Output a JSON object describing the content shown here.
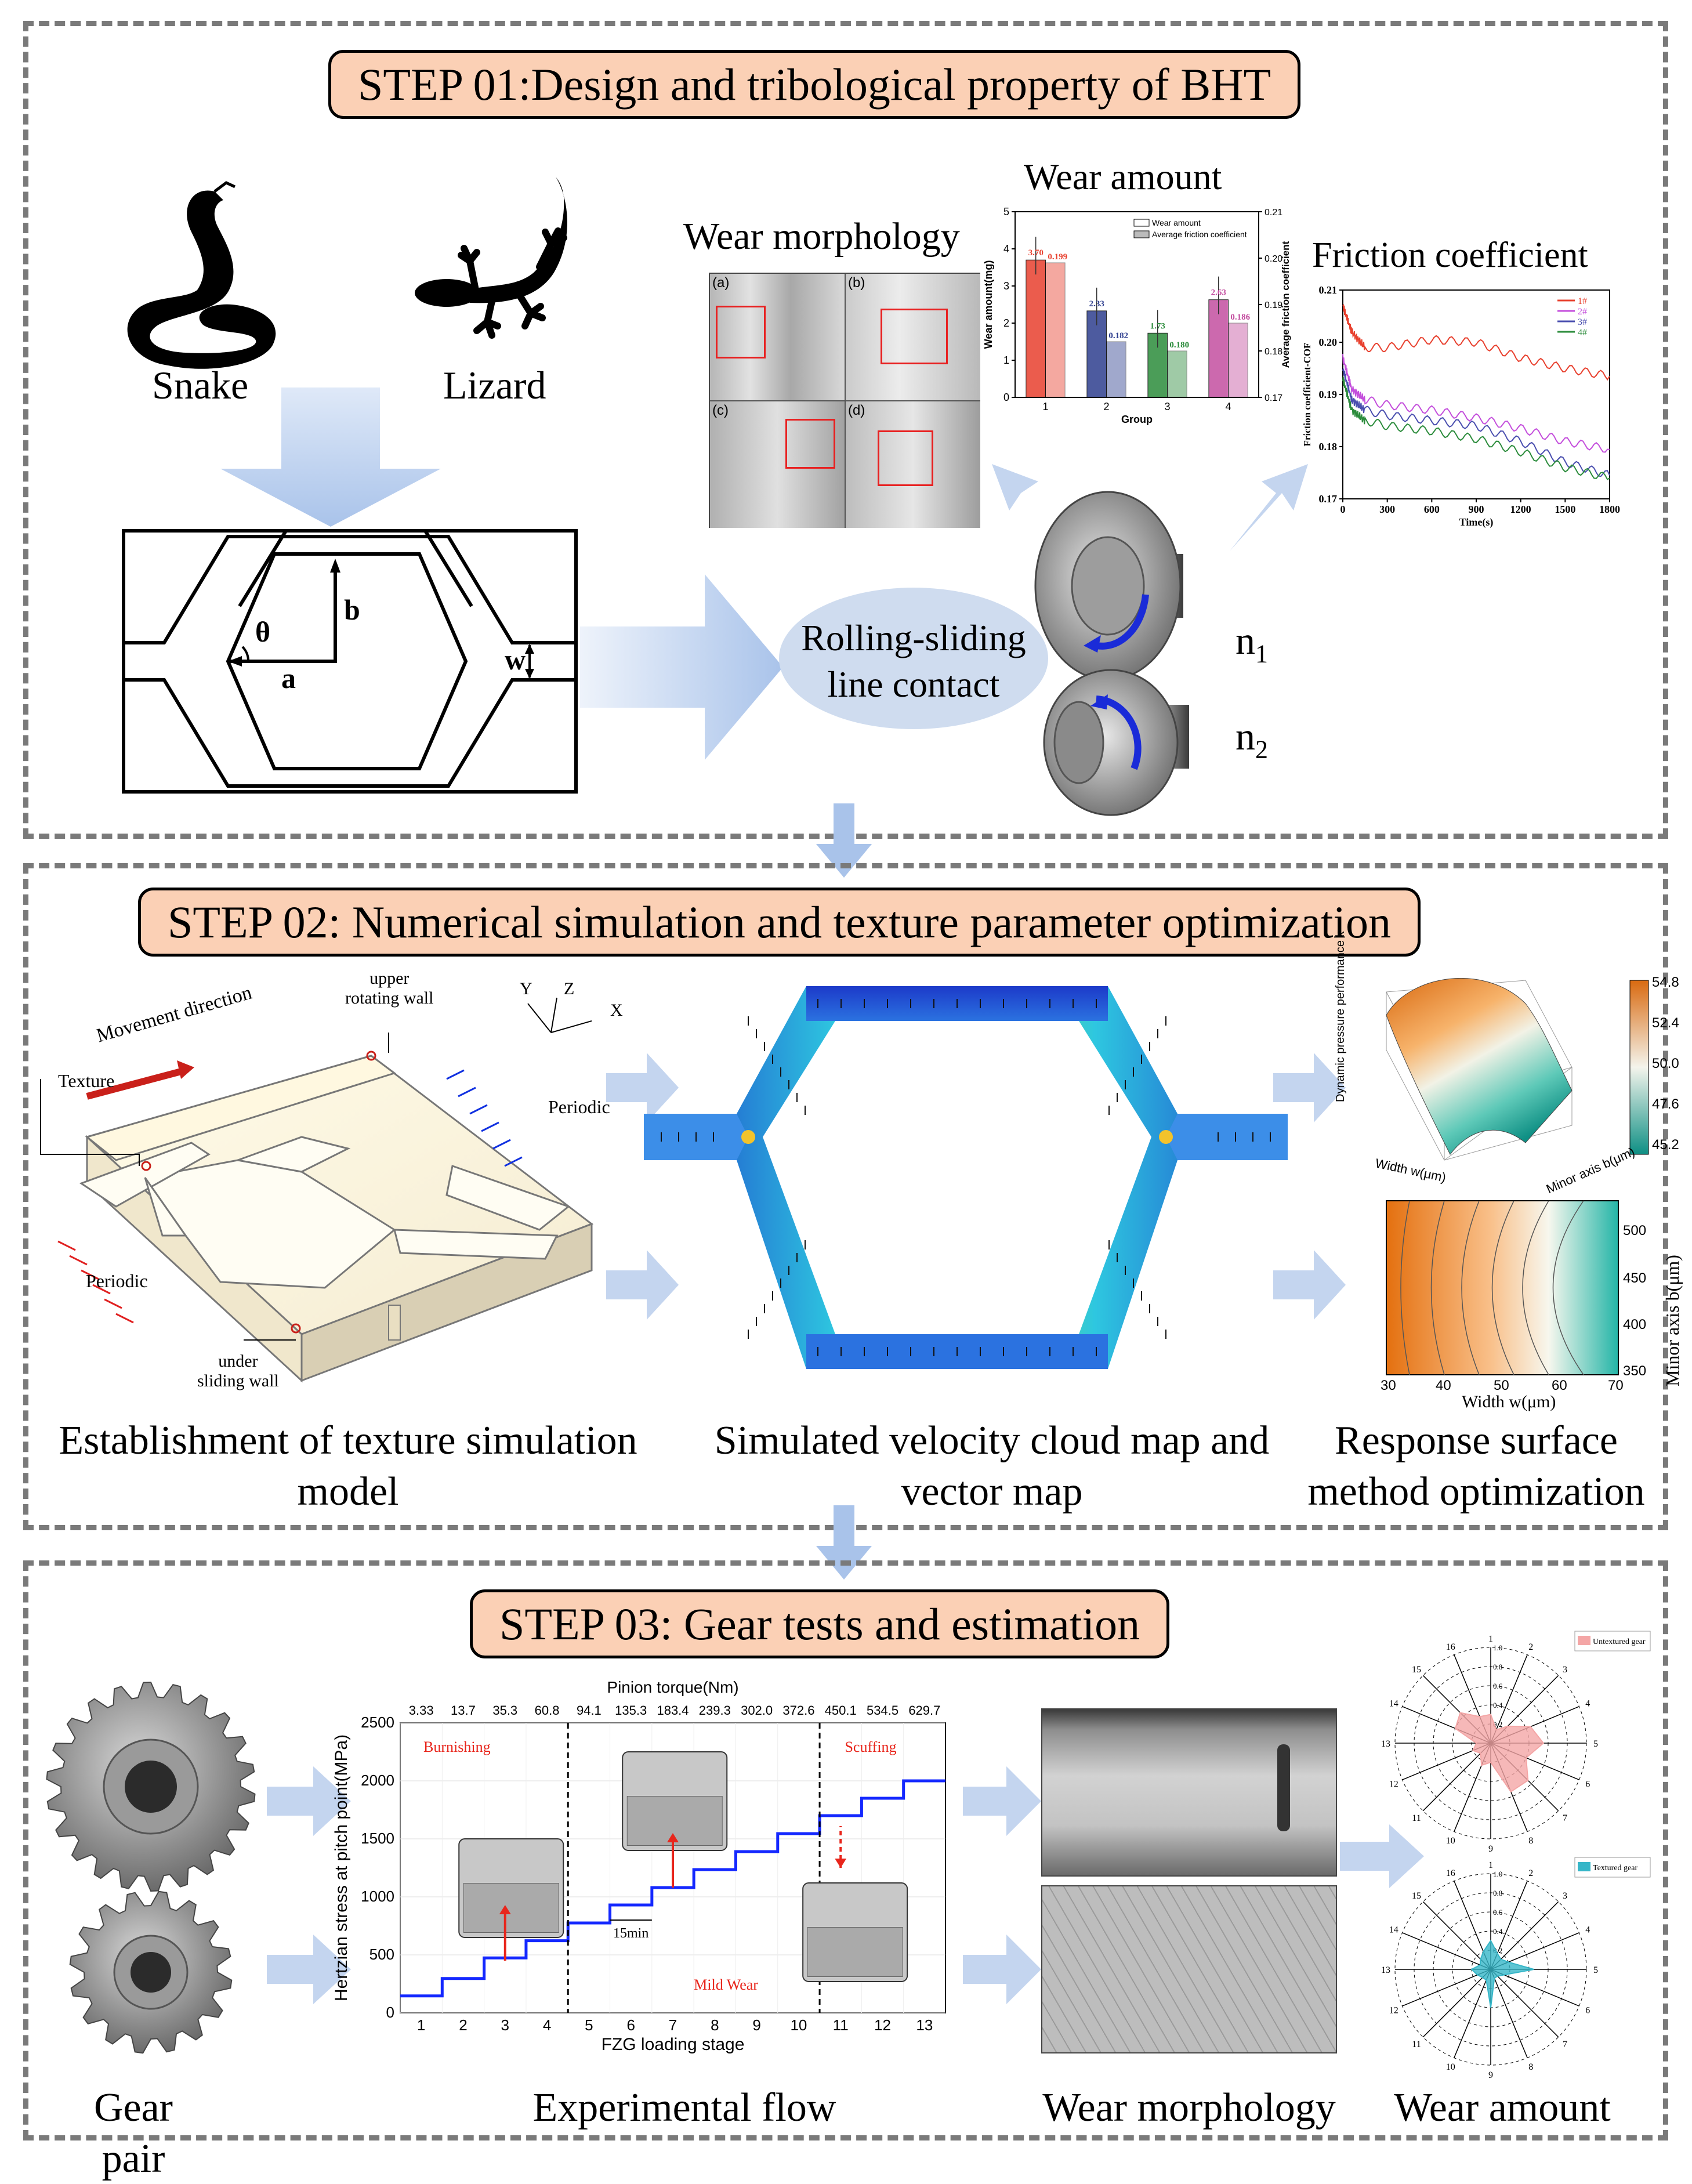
{
  "step1": {
    "title": "STEP 01:Design and tribological property of BHT",
    "snake_label": "Snake",
    "lizard_label": "Lizard",
    "texture_labels": {
      "theta": "θ",
      "a": "a",
      "b": "b",
      "w": "w"
    },
    "contact_label": "Rolling-sliding\nline contact",
    "n1": "n",
    "n1_sub": "1",
    "n2": "n",
    "n2_sub": "2",
    "wear_morphology_title": "Wear morphology",
    "wear_morphology_panels": [
      "(a)",
      "(b)",
      "(c)",
      "(d)"
    ],
    "wear_amount_title": "Wear amount",
    "friction_title": "Friction coefficient"
  },
  "wear_chart": {
    "type": "bar",
    "categories": [
      "1",
      "2",
      "3",
      "4"
    ],
    "xlabel": "Group",
    "ylabel": "Wear amount(mg)",
    "y2label": "Average friction coefficient",
    "ylim": [
      0,
      5
    ],
    "y2lim": [
      0.17,
      0.21
    ],
    "legend": [
      "Wear amount",
      "Average friction coefficient"
    ],
    "yticks": [
      "0",
      "1",
      "2",
      "3",
      "4",
      "5"
    ],
    "y2ticks": [
      "0.17",
      "0.18",
      "0.19",
      "0.20",
      "0.21"
    ],
    "series": [
      {
        "name": "Wear amount",
        "values": [
          3.7,
          2.33,
          1.73,
          2.63
        ],
        "labels": [
          "3.70",
          "2.33",
          "1.73",
          "2.63"
        ]
      },
      {
        "name": "Average friction coefficient",
        "values": [
          0.199,
          0.182,
          0.18,
          0.186
        ],
        "labels": [
          "0.199",
          "0.182",
          "0.180",
          "0.186"
        ]
      }
    ],
    "colors": [
      "#e8402e",
      "#2f3f8f",
      "#2c8c3c",
      "#c44fa0"
    ]
  },
  "friction_chart": {
    "type": "line",
    "xlabel": "Time(s)",
    "ylabel": "Friction coefficient-COF",
    "xlim": [
      0,
      1800
    ],
    "ylim": [
      0.17,
      0.21
    ],
    "xticks": [
      "0",
      "300",
      "600",
      "900",
      "1200",
      "1500",
      "1800"
    ],
    "yticks": [
      "0.17",
      "0.18",
      "0.19",
      "0.20",
      "0.21"
    ],
    "series": [
      {
        "name": "1#",
        "color": "#e8402e",
        "x": [
          0,
          60,
          150,
          300,
          600,
          900,
          1200,
          1500,
          1800
        ],
        "y": [
          0.207,
          0.202,
          0.199,
          0.199,
          0.2005,
          0.2,
          0.197,
          0.195,
          0.1935
        ]
      },
      {
        "name": "2#",
        "color": "#c44fdc",
        "x": [
          0,
          60,
          150,
          300,
          600,
          900,
          1200,
          1500,
          1800
        ],
        "y": [
          0.197,
          0.191,
          0.189,
          0.188,
          0.187,
          0.1855,
          0.1835,
          0.181,
          0.1795
        ]
      },
      {
        "name": "3#",
        "color": "#4a4faf",
        "x": [
          0,
          60,
          150,
          300,
          600,
          900,
          1200,
          1500,
          1800
        ],
        "y": [
          0.195,
          0.189,
          0.187,
          0.186,
          0.185,
          0.184,
          0.181,
          0.177,
          0.1745
        ]
      },
      {
        "name": "4#",
        "color": "#2c8c3c",
        "x": [
          0,
          60,
          150,
          300,
          600,
          900,
          1200,
          1500,
          1800
        ],
        "y": [
          0.193,
          0.187,
          0.185,
          0.184,
          0.183,
          0.1815,
          0.179,
          0.176,
          0.174
        ]
      }
    ]
  },
  "step2": {
    "title": "STEP 02: Numerical simulation and texture parameter optimization",
    "movement_direction": "Movement direction",
    "texture": "Texture",
    "upper_wall": "upper\nrotating wall",
    "under_wall": "under\nsliding wall",
    "periodic": "Periodic",
    "axis_y": "Y",
    "axis_z": "Z",
    "axis_x": "X",
    "caption_left": "Establishment of texture simulation\nmodel",
    "caption_mid": "Simulated velocity cloud map and\nvector map",
    "caption_right": "Response surface\nmethod optimization",
    "surface_colorbar": [
      "54.8",
      "52.4",
      "50.0",
      "47.6",
      "45.2"
    ],
    "surface_zlabel": "Dynamic pressure performance k",
    "surface_xlabel": "Width w(μm)",
    "surface_ylabel": "Minor axis b(μm)",
    "contour_xticks": [
      "30",
      "40",
      "50",
      "60",
      "70"
    ],
    "contour_yticks": [
      "500",
      "450",
      "400",
      "350"
    ],
    "contour_xlabel": "Width w(μm)",
    "contour_ylabel": "Minor axis b(μm)"
  },
  "step3": {
    "title": "STEP 03: Gear tests and estimation",
    "caption_gear": "Gear pair",
    "caption_flow": "Experimental flow",
    "caption_morph": "Wear morphology",
    "caption_amount": "Wear amount",
    "radar_legend_top": "Untextured gear",
    "radar_legend_bottom": "Textured gear",
    "radar_labels": [
      "1",
      "2",
      "3",
      "4",
      "5",
      "6",
      "7",
      "8",
      "9",
      "10",
      "11",
      "12",
      "13",
      "14",
      "15",
      "16"
    ],
    "radar_ticks": [
      "1.0",
      "0.8",
      "0.6",
      "0.4",
      "0.2"
    ],
    "radar_top_values": [
      0.3,
      0.15,
      0.25,
      0.45,
      0.55,
      0.4,
      0.55,
      0.55,
      0.2,
      0.25,
      0.15,
      0.2,
      0.15,
      0.4,
      0.45,
      0.3
    ],
    "radar_bottom_values": [
      0.3,
      0.18,
      0.15,
      0.2,
      0.45,
      0.15,
      0.1,
      0.1,
      0.4,
      0.12,
      0.12,
      0.15,
      0.2,
      0.12,
      0.15,
      0.2
    ],
    "radar_top_color": "#f4a6a6",
    "radar_bottom_color": "#36b6c8"
  },
  "fzg_chart": {
    "type": "line",
    "title": "Pinion torque(Nm)",
    "xlabel": "FZG loading stage",
    "ylabel": "Hertzian stress at pitch point(MPa)",
    "ylim": [
      0,
      2500
    ],
    "yticks": [
      "0",
      "500",
      "1000",
      "1500",
      "2000",
      "2500"
    ],
    "categories": [
      "1",
      "2",
      "3",
      "4",
      "5",
      "6",
      "7",
      "8",
      "9",
      "10",
      "11",
      "12",
      "13"
    ],
    "torque": [
      "3.33",
      "13.7",
      "35.3",
      "60.8",
      "94.1",
      "135.3",
      "183.4",
      "239.3",
      "302.0",
      "372.6",
      "450.1",
      "534.5",
      "629.7"
    ],
    "stress": [
      146,
      296,
      474,
      622,
      775,
      930,
      1080,
      1235,
      1390,
      1545,
      1700,
      1850,
      2000
    ],
    "zones": [
      "Burnishing",
      "Mild Wear",
      "Scuffing"
    ],
    "interval_label": "15min",
    "line_color": "#1428ff",
    "zone_color": "#e8261c"
  }
}
